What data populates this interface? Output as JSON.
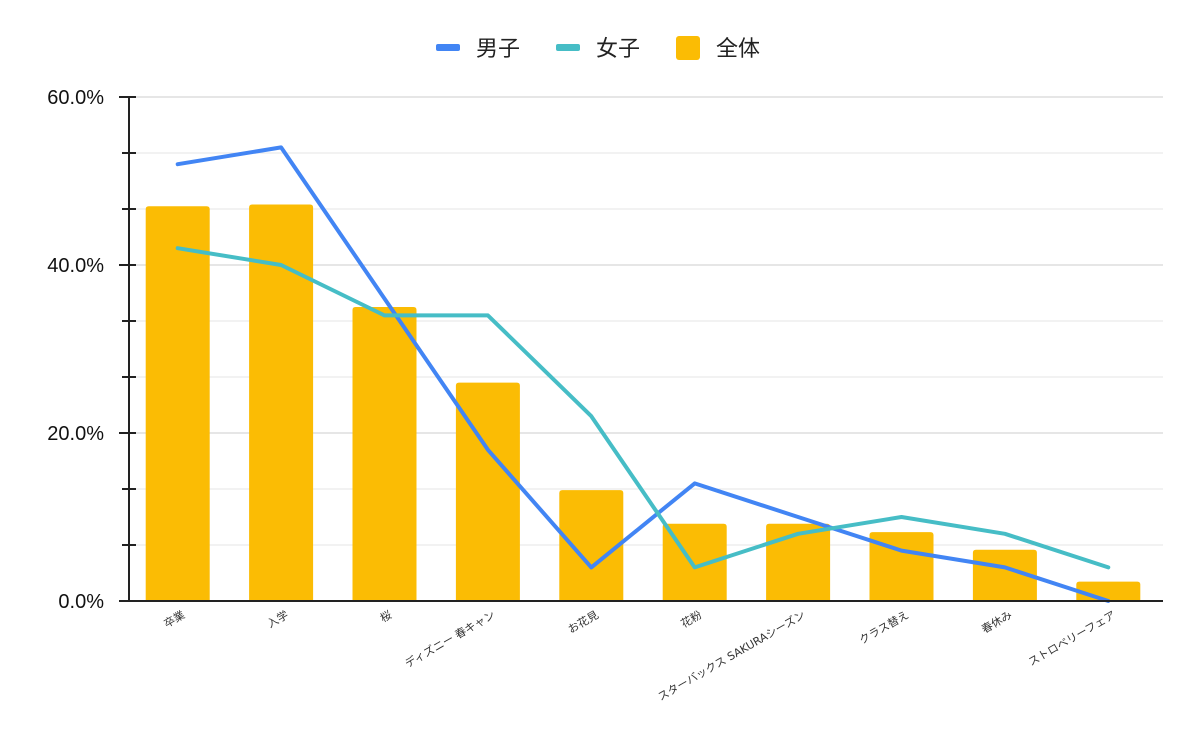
{
  "chart_data": {
    "type": "bar",
    "categories": [
      "卒業",
      "入学",
      "桜",
      "ディズニー 春キャン",
      "お花見",
      "花粉",
      "スターバックス SAKURAシーズン",
      "クラス替え",
      "春休み",
      "ストロベリーフェア"
    ],
    "series": [
      {
        "name": "全体",
        "type": "bar",
        "color": "#FBBC04",
        "values": [
          47.0,
          47.2,
          35.0,
          26.0,
          13.2,
          9.2,
          9.2,
          8.2,
          6.1,
          2.3
        ]
      },
      {
        "name": "男子",
        "type": "line",
        "color": "#4285F4",
        "values": [
          52.0,
          54.0,
          36.0,
          18.0,
          4.0,
          14.0,
          10.0,
          6.0,
          4.0,
          0.0
        ]
      },
      {
        "name": "女子",
        "type": "line",
        "color": "#46BDC6",
        "values": [
          42.0,
          40.0,
          34.0,
          34.0,
          22.0,
          4.0,
          8.0,
          10.0,
          8.0,
          4.0
        ]
      }
    ],
    "legend_order": [
      "男子",
      "女子",
      "全体"
    ],
    "legend_position": "top-center",
    "ylim": [
      0,
      60
    ],
    "yticks": [
      "0.0%",
      "20.0%",
      "40.0%",
      "60.0%"
    ],
    "ytick_values": [
      0,
      20,
      40,
      60
    ],
    "grid": true
  }
}
